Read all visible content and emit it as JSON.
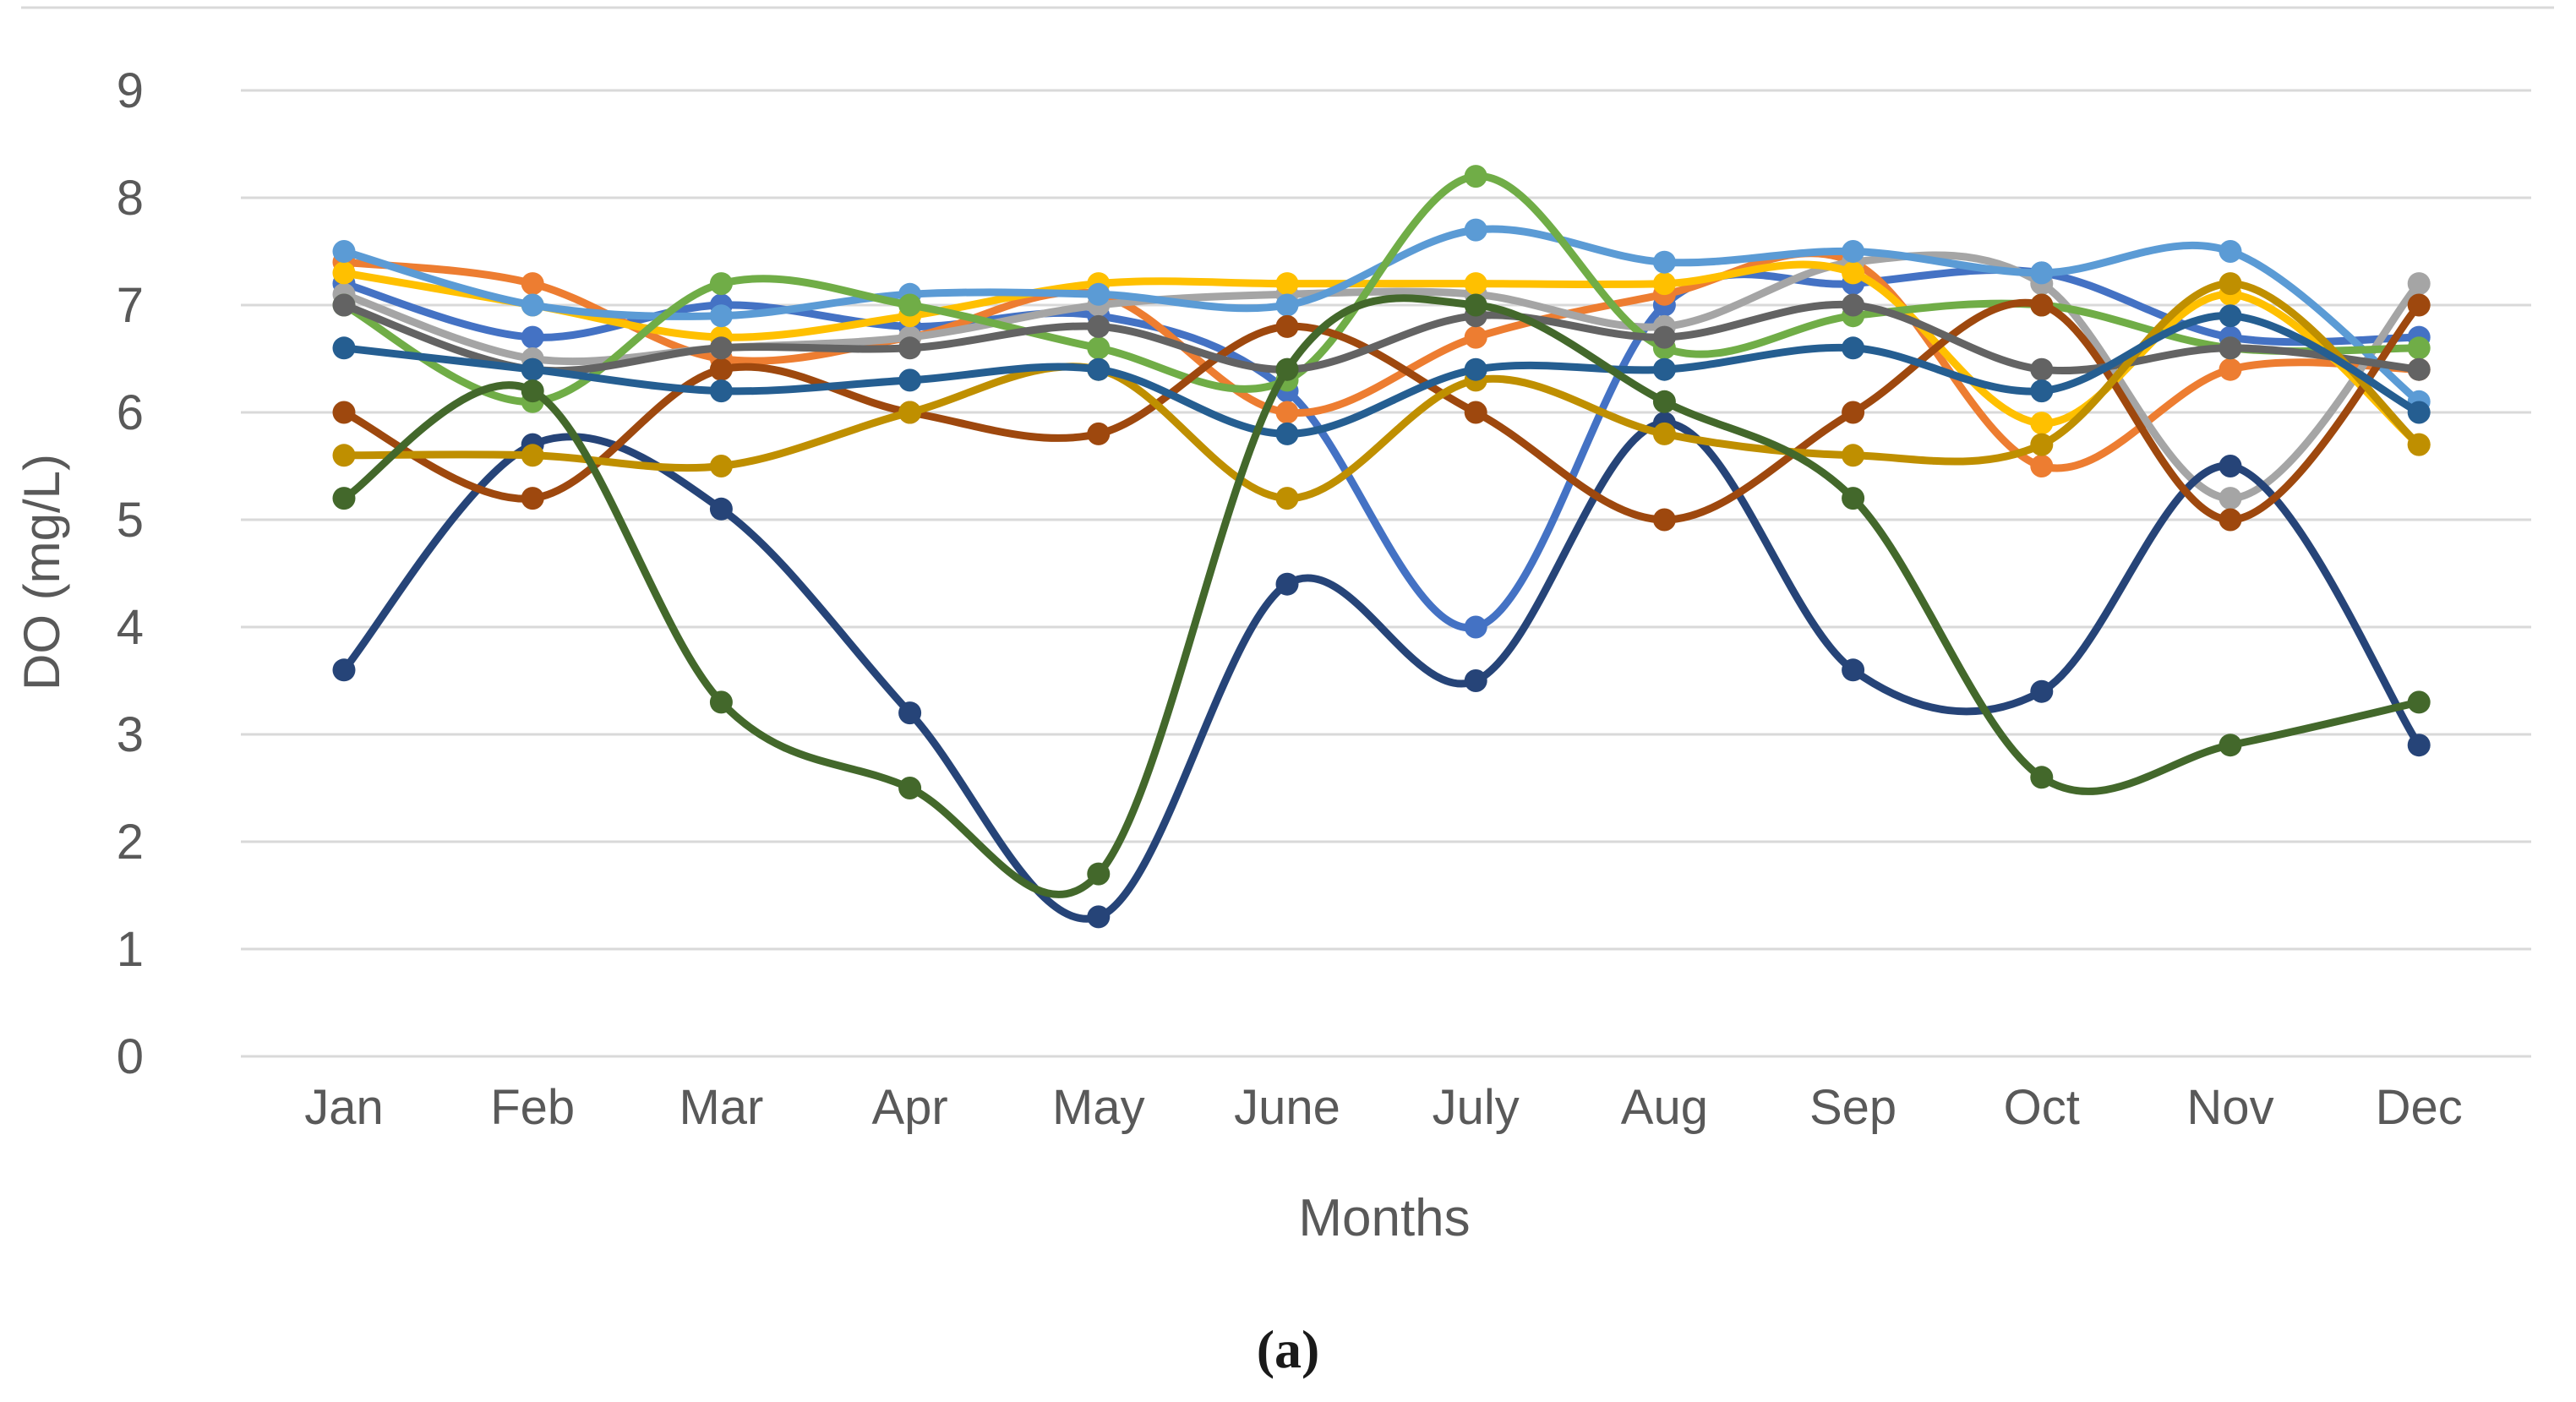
{
  "figure": {
    "caption": "(a)"
  },
  "style": {
    "background": "#FFFFFF",
    "grid_color": "#D9D9D9",
    "top_border_color": "#D9D9D9",
    "axis_text_color": "#595959",
    "line_width": 9,
    "marker_radius": 13.5
  },
  "chart_data": {
    "type": "line",
    "title": "",
    "xlabel": "Months",
    "ylabel": "DO (mg/L)",
    "ylim": [
      0,
      9
    ],
    "ytick_step": 1,
    "grid": true,
    "legend_position": "none",
    "smooth": true,
    "marker": "circle",
    "categories": [
      "Jan",
      "Feb",
      "Mar",
      "Apr",
      "May",
      "June",
      "July",
      "Aug",
      "Sep",
      "Oct",
      "Nov",
      "Dec"
    ],
    "series": [
      {
        "name": "blue",
        "color": "#4472C4",
        "values": [
          7.2,
          6.7,
          7.0,
          6.8,
          6.9,
          6.2,
          4.0,
          7.0,
          7.2,
          7.3,
          6.7,
          6.7
        ]
      },
      {
        "name": "orange",
        "color": "#ED7D31",
        "values": [
          7.4,
          7.2,
          6.5,
          6.7,
          7.1,
          6.0,
          6.7,
          7.1,
          7.4,
          5.5,
          6.4,
          6.4
        ]
      },
      {
        "name": "gray",
        "color": "#A5A5A5",
        "values": [
          7.1,
          6.5,
          6.6,
          6.7,
          7.0,
          7.1,
          7.1,
          6.8,
          7.4,
          7.2,
          5.2,
          7.2
        ]
      },
      {
        "name": "gold",
        "color": "#FFC000",
        "values": [
          7.3,
          7.0,
          6.7,
          6.9,
          7.2,
          7.2,
          7.2,
          7.2,
          7.3,
          5.9,
          7.1,
          5.7
        ]
      },
      {
        "name": "light-blue",
        "color": "#5B9BD5",
        "values": [
          7.5,
          7.0,
          6.9,
          7.1,
          7.1,
          7.0,
          7.7,
          7.4,
          7.5,
          7.3,
          7.5,
          6.1
        ]
      },
      {
        "name": "green",
        "color": "#70AD47",
        "values": [
          7.0,
          6.1,
          7.2,
          7.0,
          6.6,
          6.3,
          8.2,
          6.6,
          6.9,
          7.0,
          6.6,
          6.6
        ]
      },
      {
        "name": "dark-blue",
        "color": "#264478",
        "values": [
          3.6,
          5.7,
          5.1,
          3.2,
          1.3,
          4.4,
          3.5,
          5.9,
          3.6,
          3.4,
          5.5,
          2.9
        ]
      },
      {
        "name": "brown",
        "color": "#9E480E",
        "values": [
          6.0,
          5.2,
          6.4,
          6.0,
          5.8,
          6.8,
          6.0,
          5.0,
          6.0,
          7.0,
          5.0,
          7.0
        ]
      },
      {
        "name": "dark-gray",
        "color": "#636363",
        "values": [
          7.0,
          6.4,
          6.6,
          6.6,
          6.8,
          6.4,
          6.9,
          6.7,
          7.0,
          6.4,
          6.6,
          6.4
        ]
      },
      {
        "name": "dark-yellow",
        "color": "#BF8F00",
        "values": [
          5.6,
          5.6,
          5.5,
          6.0,
          6.4,
          5.2,
          6.3,
          5.8,
          5.6,
          5.7,
          7.2,
          5.7
        ]
      },
      {
        "name": "steel-blue",
        "color": "#255E91",
        "values": [
          6.6,
          6.4,
          6.2,
          6.3,
          6.4,
          5.8,
          6.4,
          6.4,
          6.6,
          6.2,
          6.9,
          6.0
        ]
      },
      {
        "name": "dark-green",
        "color": "#43682B",
        "values": [
          5.2,
          6.2,
          3.3,
          2.5,
          1.7,
          6.4,
          7.0,
          6.1,
          5.2,
          2.6,
          2.9,
          3.3
        ]
      }
    ]
  }
}
